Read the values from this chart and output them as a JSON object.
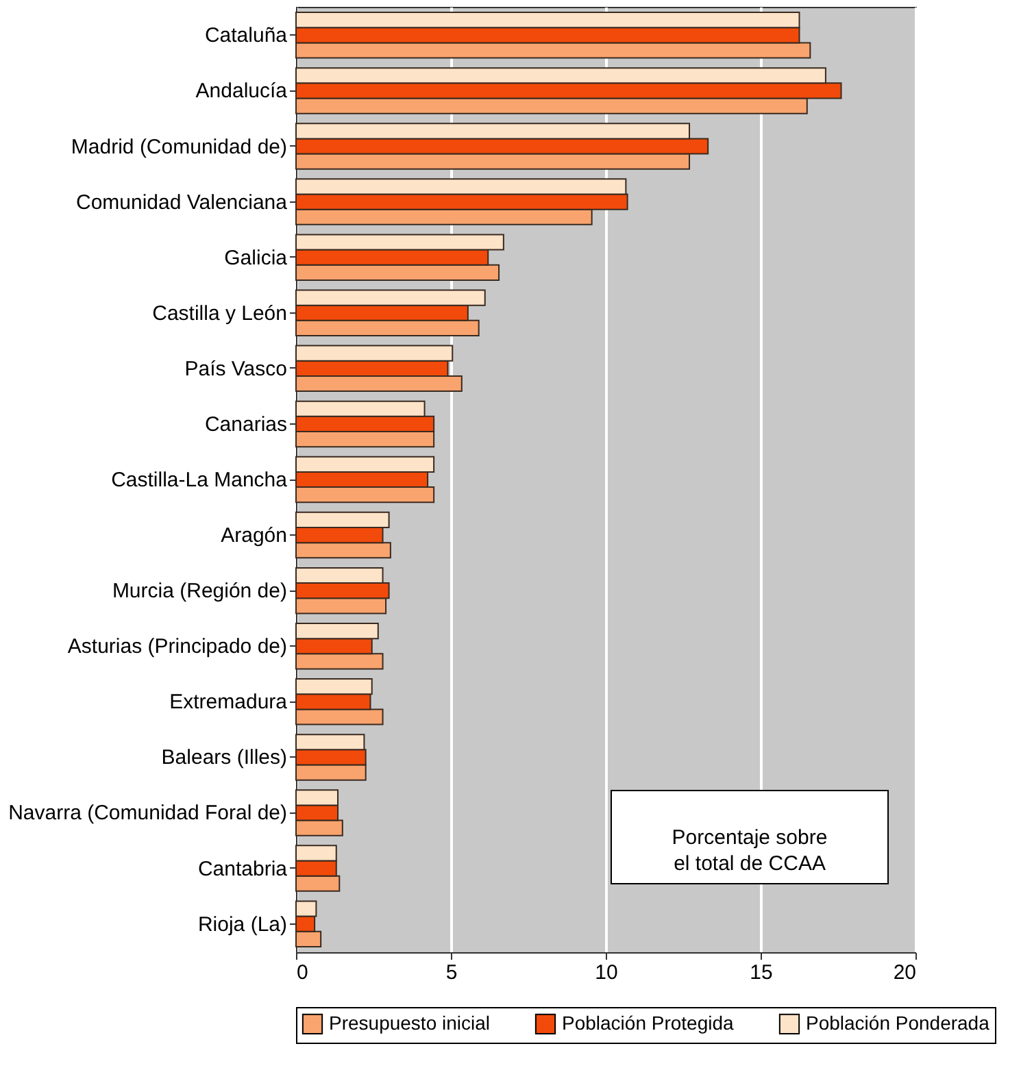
{
  "chart_data": {
    "type": "bar",
    "orientation": "horizontal",
    "categories": [
      "Cataluña",
      "Andalucía",
      "Madrid (Comunidad de)",
      "Comunidad Valenciana",
      "Galicia",
      "Castilla y León",
      "País Vasco",
      "Canarias",
      "Castilla-La Mancha",
      "Aragón",
      "Murcia (Región de)",
      "Asturias (Principado de)",
      "Extremadura",
      "Balears (Illes)",
      "Navarra (Comunidad Foral de)",
      "Cantabria",
      "Rioja (La)"
    ],
    "series": [
      {
        "name": "Presupuesto inicial",
        "color": "#f9a46e",
        "values": [
          16.6,
          16.5,
          12.7,
          9.55,
          6.55,
          5.9,
          5.35,
          4.45,
          4.45,
          3.05,
          2.9,
          2.8,
          2.8,
          2.25,
          1.5,
          1.4,
          0.8
        ]
      },
      {
        "name": "Población Protegida",
        "color": "#f24a0a",
        "values": [
          16.25,
          17.6,
          13.3,
          10.7,
          6.2,
          5.55,
          4.9,
          4.45,
          4.25,
          2.8,
          3.0,
          2.45,
          2.4,
          2.25,
          1.35,
          1.3,
          0.6
        ]
      },
      {
        "name": "Población Ponderada",
        "color": "#fde3c8",
        "values": [
          16.25,
          17.1,
          12.7,
          10.65,
          6.7,
          6.1,
          5.05,
          4.15,
          4.45,
          3.0,
          2.8,
          2.65,
          2.45,
          2.2,
          1.35,
          1.3,
          0.65
        ]
      }
    ],
    "xlim": [
      0,
      20
    ],
    "xticks": [
      0,
      5,
      10,
      15,
      20
    ],
    "grid": "x",
    "legend": "bottom",
    "annotations": [
      "Porcentaje sobre\nel total de CCAA"
    ]
  }
}
